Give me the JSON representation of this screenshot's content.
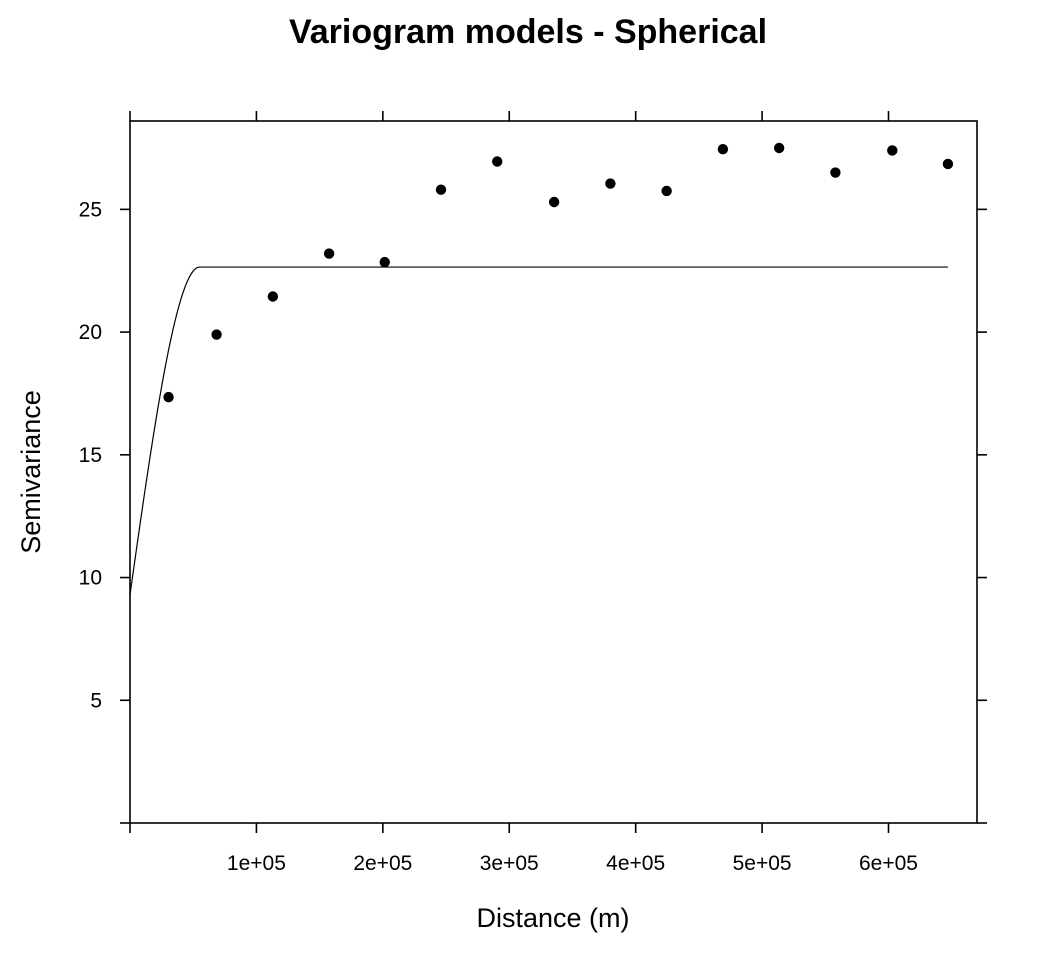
{
  "chart_data": {
    "type": "scatter",
    "title": "Variogram models - Spherical",
    "xlabel": "Distance (m)",
    "ylabel": "Semivariance",
    "xlim": [
      0,
      670000
    ],
    "ylim": [
      0,
      28.6
    ],
    "x_ticks": [
      {
        "value": 0,
        "label": ""
      },
      {
        "value": 100000,
        "label": "1e+05"
      },
      {
        "value": 200000,
        "label": "2e+05"
      },
      {
        "value": 300000,
        "label": "3e+05"
      },
      {
        "value": 400000,
        "label": "4e+05"
      },
      {
        "value": 500000,
        "label": "5e+05"
      },
      {
        "value": 600000,
        "label": "6e+05"
      }
    ],
    "y_ticks": [
      {
        "value": 0,
        "label": ""
      },
      {
        "value": 5,
        "label": "5"
      },
      {
        "value": 10,
        "label": "10"
      },
      {
        "value": 15,
        "label": "15"
      },
      {
        "value": 20,
        "label": "20"
      },
      {
        "value": 25,
        "label": "25"
      }
    ],
    "points": [
      {
        "x": 30500,
        "y": 17.35
      },
      {
        "x": 68500,
        "y": 19.9
      },
      {
        "x": 113000,
        "y": 21.45
      },
      {
        "x": 157500,
        "y": 23.2
      },
      {
        "x": 201500,
        "y": 22.85
      },
      {
        "x": 246000,
        "y": 25.8
      },
      {
        "x": 290500,
        "y": 26.95
      },
      {
        "x": 335500,
        "y": 25.3
      },
      {
        "x": 380000,
        "y": 26.05
      },
      {
        "x": 424500,
        "y": 25.75
      },
      {
        "x": 469000,
        "y": 27.45
      },
      {
        "x": 513500,
        "y": 27.5
      },
      {
        "x": 558000,
        "y": 26.5
      },
      {
        "x": 603000,
        "y": 27.4
      },
      {
        "x": 647000,
        "y": 26.85
      }
    ],
    "model": {
      "name": "Spherical",
      "nugget": 9.3,
      "sill": 22.65,
      "range": 55000,
      "x_end": 647000
    },
    "grid": false
  }
}
